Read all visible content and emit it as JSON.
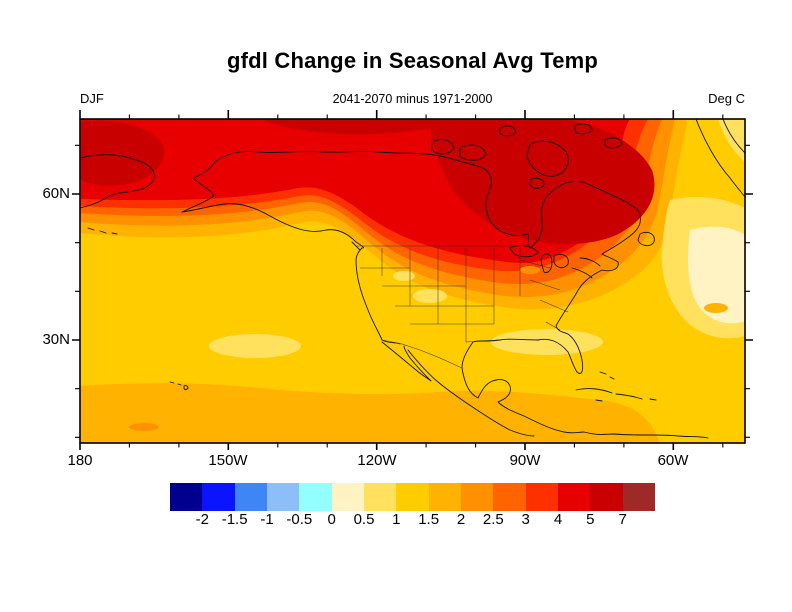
{
  "figure": {
    "title": "gfdl Change in Seasonal Avg Temp",
    "subtitle": "2041-2070 minus 1971-2000",
    "season_label": "DJF",
    "units_label": "Deg C"
  },
  "axes": {
    "x_tick_labels": [
      "180",
      "150W",
      "120W",
      "90W",
      "60W"
    ],
    "y_tick_labels": [
      "60N",
      "30N"
    ]
  },
  "colorbar": {
    "boundary_labels": [
      "-2",
      "-1.5",
      "-1",
      "-0.5",
      "0",
      "0.5",
      "1",
      "1.5",
      "2",
      "2.5",
      "3",
      "4",
      "5",
      "7"
    ],
    "colors": [
      "#00008F",
      "#0A14FF",
      "#3E86F5",
      "#8CBEFA",
      "#93FFFF",
      "#FFF3C4",
      "#FFE15E",
      "#FFCC00",
      "#FFB300",
      "#FF9100",
      "#FF6400",
      "#FF3000",
      "#E80000",
      "#C80000",
      "#9E2A28"
    ]
  },
  "chart_data": {
    "type": "heatmap",
    "subtype": "filled-contour-map",
    "title": "gfdl Change in Seasonal Avg Temp",
    "subtitle": "2041-2070 minus 1971-2000",
    "season": "DJF",
    "units": "Deg C",
    "map_extent": {
      "lon_range": [
        "180",
        "45W"
      ],
      "lat_range": [
        "~8N",
        "~76N"
      ]
    },
    "x_ticks_lon": [
      "180",
      "150W",
      "120W",
      "90W",
      "60W"
    ],
    "y_ticks_lat": [
      "60N",
      "30N"
    ],
    "contour_levels_degC": [
      -2,
      -1.5,
      -1,
      -0.5,
      0,
      0.5,
      1,
      1.5,
      2,
      2.5,
      3,
      4,
      5,
      7
    ],
    "palette_hex": [
      "#00008F",
      "#0A14FF",
      "#3E86F5",
      "#8CBEFA",
      "#93FFFF",
      "#FFF3C4",
      "#FFE15E",
      "#FFCC00",
      "#FFB300",
      "#FF9100",
      "#FF6400",
      "#FF3000",
      "#E80000",
      "#C80000",
      "#9E2A28"
    ],
    "regions": [
      {
        "area": "Arctic coast / far-north band across top of map",
        "value_degC": "4 to 7"
      },
      {
        "area": "Hudson Bay and surrounding northern Canada",
        "value_degC": "5 to 7 (maximum warming)"
      },
      {
        "area": "Alaska interior and northern Canada",
        "value_degC": "3 to 5"
      },
      {
        "area": "Southern Canada / Great Lakes / Northeast",
        "value_degC": "3 to 4"
      },
      {
        "area": "Northern United States",
        "value_degC": "2 to 3"
      },
      {
        "area": "Southern United States and Mexico",
        "value_degC": "1 to 2"
      },
      {
        "area": "Pacific Ocean mid-latitudes (incl. Hawaii)",
        "value_degC": "1 to 1.5 with 0.5-1 patches"
      },
      {
        "area": "North Atlantic southeast of Greenland",
        "value_degC": "0 to 0.5 (weakest change)"
      },
      {
        "area": "Greenland / far northeast corner",
        "value_degC": "0.5 to 1.5"
      }
    ],
    "legend_position": "bottom",
    "grid": false
  }
}
